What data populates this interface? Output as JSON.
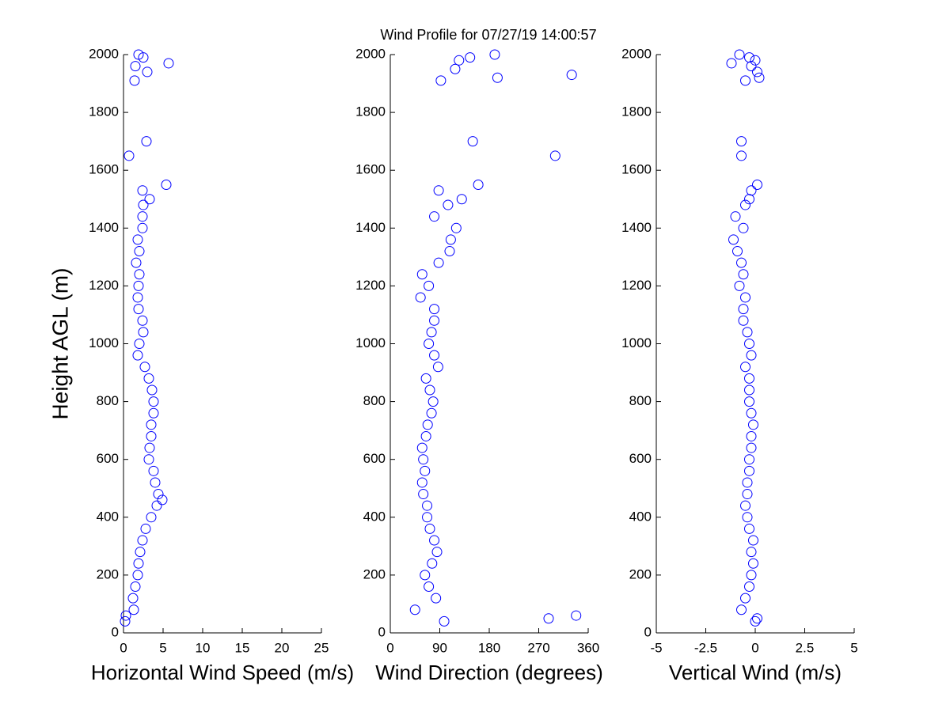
{
  "title": "Wind Profile for  07/27/19 14:00:57",
  "chart_data": [
    {
      "type": "scatter",
      "xlabel": "Horizontal Wind Speed (m/s)",
      "ylabel": "Height AGL (m)",
      "color": "#0000ff",
      "xlim": [
        0,
        25
      ],
      "xticks": [
        0,
        5,
        10,
        15,
        20,
        25
      ],
      "ylim": [
        0,
        2000
      ],
      "yticks": [
        0,
        200,
        400,
        600,
        800,
        1000,
        1200,
        1400,
        1600,
        1800,
        2000
      ],
      "x": [
        0.2,
        0.3,
        1.3,
        1.2,
        1.5,
        1.8,
        1.9,
        2.1,
        2.4,
        2.8,
        3.5,
        4.2,
        4.9,
        4.4,
        4.0,
        3.8,
        3.2,
        3.3,
        3.5,
        3.5,
        3.8,
        3.8,
        3.6,
        3.2,
        2.7,
        1.8,
        2.0,
        2.5,
        2.4,
        1.9,
        1.8,
        1.9,
        2.0,
        1.6,
        2.0,
        1.8,
        2.4,
        2.4,
        2.5,
        3.3,
        2.4,
        5.4,
        0.7,
        2.9,
        1.4,
        3.0,
        1.5,
        5.7,
        2.5,
        1.9
      ],
      "values": [
        40,
        60,
        80,
        120,
        160,
        200,
        240,
        280,
        320,
        360,
        400,
        440,
        460,
        480,
        520,
        560,
        600,
        640,
        680,
        720,
        760,
        800,
        840,
        880,
        920,
        960,
        1000,
        1040,
        1080,
        1120,
        1160,
        1200,
        1240,
        1280,
        1320,
        1360,
        1400,
        1440,
        1480,
        1500,
        1530,
        1550,
        1650,
        1700,
        1910,
        1940,
        1960,
        1970,
        1990,
        2000
      ]
    },
    {
      "type": "scatter",
      "xlabel": "Wind Direction (degrees)",
      "color": "#0000ff",
      "xlim": [
        0,
        360
      ],
      "xticks": [
        0,
        90,
        180,
        270,
        360
      ],
      "ylim": [
        0,
        2000
      ],
      "yticks": [
        0,
        200,
        400,
        600,
        800,
        1000,
        1200,
        1400,
        1600,
        1800,
        2000
      ],
      "x": [
        98,
        288,
        338,
        45,
        83,
        70,
        63,
        76,
        85,
        80,
        72,
        67,
        67,
        60,
        58,
        63,
        60,
        58,
        65,
        68,
        75,
        78,
        72,
        65,
        87,
        80,
        70,
        75,
        80,
        80,
        55,
        70,
        58,
        88,
        108,
        110,
        120,
        80,
        105,
        130,
        88,
        160,
        300,
        150,
        92,
        195,
        330,
        118,
        125,
        145,
        190
      ],
      "values": [
        40,
        50,
        60,
        80,
        120,
        160,
        200,
        240,
        280,
        320,
        360,
        400,
        440,
        480,
        520,
        560,
        600,
        640,
        680,
        720,
        760,
        800,
        840,
        880,
        920,
        960,
        1000,
        1040,
        1080,
        1120,
        1160,
        1200,
        1240,
        1280,
        1320,
        1360,
        1400,
        1440,
        1480,
        1500,
        1530,
        1550,
        1650,
        1700,
        1910,
        1920,
        1930,
        1950,
        1980,
        1990,
        2000
      ]
    },
    {
      "type": "scatter",
      "xlabel": "Vertical Wind (m/s)",
      "color": "#0000ff",
      "xlim": [
        -5,
        5
      ],
      "xticks": [
        -5,
        -2.5,
        0,
        2.5,
        5
      ],
      "ylim": [
        0,
        2000
      ],
      "yticks": [
        0,
        200,
        400,
        600,
        800,
        1000,
        1200,
        1400,
        1600,
        1800,
        2000
      ],
      "x": [
        0,
        0.1,
        -0.7,
        -0.5,
        -0.3,
        -0.2,
        -0.1,
        -0.2,
        -0.1,
        -0.3,
        -0.4,
        -0.5,
        -0.4,
        -0.4,
        -0.3,
        -0.3,
        -0.2,
        -0.2,
        -0.1,
        -0.2,
        -0.3,
        -0.3,
        -0.3,
        -0.5,
        -0.2,
        -0.3,
        -0.4,
        -0.6,
        -0.6,
        -0.5,
        -0.8,
        -0.6,
        -0.7,
        -0.9,
        -1.1,
        -0.6,
        -1.0,
        -0.5,
        -0.3,
        -0.2,
        0.1,
        -0.7,
        -0.7,
        -0.5,
        0.2,
        0.1,
        -0.2,
        -1.2,
        0,
        -0.3,
        -0.8
      ],
      "values": [
        40,
        50,
        80,
        120,
        160,
        200,
        240,
        280,
        320,
        360,
        400,
        440,
        480,
        520,
        560,
        600,
        640,
        680,
        720,
        760,
        800,
        840,
        880,
        920,
        960,
        1000,
        1040,
        1080,
        1120,
        1160,
        1200,
        1240,
        1280,
        1320,
        1360,
        1400,
        1440,
        1480,
        1500,
        1530,
        1550,
        1650,
        1700,
        1910,
        1920,
        1940,
        1960,
        1970,
        1980,
        1990,
        2000
      ]
    }
  ]
}
